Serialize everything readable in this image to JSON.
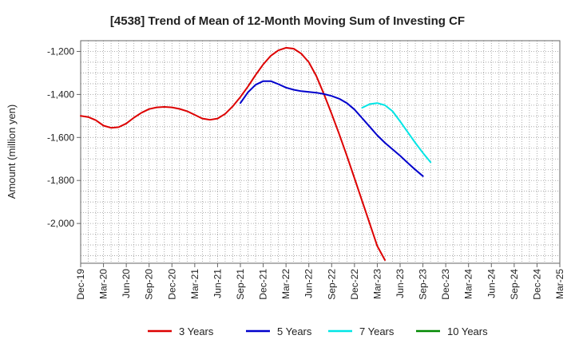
{
  "chart_data": {
    "type": "line",
    "title": "[4538]  Trend of Mean of 12-Month Moving Sum of Investing CF",
    "ylabel": "Amount (million yen)",
    "xlabel": "",
    "x_ticks": [
      "Dec-19",
      "Mar-20",
      "Jun-20",
      "Sep-20",
      "Dec-20",
      "Mar-21",
      "Jun-21",
      "Sep-21",
      "Dec-21",
      "Mar-22",
      "Jun-22",
      "Sep-22",
      "Dec-22",
      "Mar-23",
      "Jun-23",
      "Sep-23",
      "Dec-23",
      "Mar-24",
      "Jun-24",
      "Sep-24",
      "Dec-24",
      "Mar-25"
    ],
    "ylim": [
      -2185,
      -1150
    ],
    "y_ticks": [
      -1200,
      -1400,
      -1600,
      -1800,
      -2000
    ],
    "y_tick_labels": [
      "-1,200",
      "-1,400",
      "-1,600",
      "-1,800",
      "-2,000"
    ],
    "grid": true,
    "legend_position": "bottom",
    "series": [
      {
        "name": "3 Years",
        "color": "#dd0000",
        "points": [
          [
            0,
            -1500
          ],
          [
            1,
            -1505
          ],
          [
            2,
            -1520
          ],
          [
            3,
            -1545
          ],
          [
            4,
            -1555
          ],
          [
            5,
            -1552
          ],
          [
            6,
            -1535
          ],
          [
            7,
            -1508
          ],
          [
            8,
            -1485
          ],
          [
            9,
            -1468
          ],
          [
            10,
            -1460
          ],
          [
            11,
            -1458
          ],
          [
            12,
            -1460
          ],
          [
            13,
            -1467
          ],
          [
            14,
            -1478
          ],
          [
            15,
            -1495
          ],
          [
            16,
            -1512
          ],
          [
            17,
            -1518
          ],
          [
            18,
            -1512
          ],
          [
            19,
            -1490
          ],
          [
            20,
            -1455
          ],
          [
            21,
            -1412
          ],
          [
            22,
            -1363
          ],
          [
            23,
            -1310
          ],
          [
            24,
            -1260
          ],
          [
            25,
            -1220
          ],
          [
            26,
            -1195
          ],
          [
            27,
            -1183
          ],
          [
            28,
            -1187
          ],
          [
            29,
            -1210
          ],
          [
            30,
            -1250
          ],
          [
            31,
            -1315
          ],
          [
            32,
            -1400
          ],
          [
            33,
            -1490
          ],
          [
            34,
            -1585
          ],
          [
            35,
            -1685
          ],
          [
            36,
            -1790
          ],
          [
            37,
            -1895
          ],
          [
            38,
            -2000
          ],
          [
            39,
            -2105
          ],
          [
            40,
            -2170
          ]
        ]
      },
      {
        "name": "5 Years",
        "color": "#0000cc",
        "points": [
          [
            21,
            -1440
          ],
          [
            22,
            -1390
          ],
          [
            23,
            -1355
          ],
          [
            24,
            -1338
          ],
          [
            25,
            -1338
          ],
          [
            26,
            -1352
          ],
          [
            27,
            -1368
          ],
          [
            28,
            -1378
          ],
          [
            29,
            -1385
          ],
          [
            30,
            -1388
          ],
          [
            31,
            -1392
          ],
          [
            32,
            -1398
          ],
          [
            33,
            -1407
          ],
          [
            34,
            -1420
          ],
          [
            35,
            -1440
          ],
          [
            36,
            -1470
          ],
          [
            37,
            -1510
          ],
          [
            38,
            -1550
          ],
          [
            39,
            -1590
          ],
          [
            40,
            -1625
          ],
          [
            41,
            -1655
          ],
          [
            42,
            -1685
          ],
          [
            43,
            -1718
          ],
          [
            44,
            -1750
          ],
          [
            45,
            -1780
          ]
        ]
      },
      {
        "name": "7 Years",
        "color": "#00e5e5",
        "points": [
          [
            37,
            -1462
          ],
          [
            38,
            -1445
          ],
          [
            39,
            -1440
          ],
          [
            40,
            -1450
          ],
          [
            41,
            -1478
          ],
          [
            42,
            -1525
          ],
          [
            43,
            -1575
          ],
          [
            44,
            -1625
          ],
          [
            45,
            -1672
          ],
          [
            46,
            -1715
          ]
        ]
      },
      {
        "name": "10 Years",
        "color": "#008800",
        "points": []
      }
    ]
  }
}
